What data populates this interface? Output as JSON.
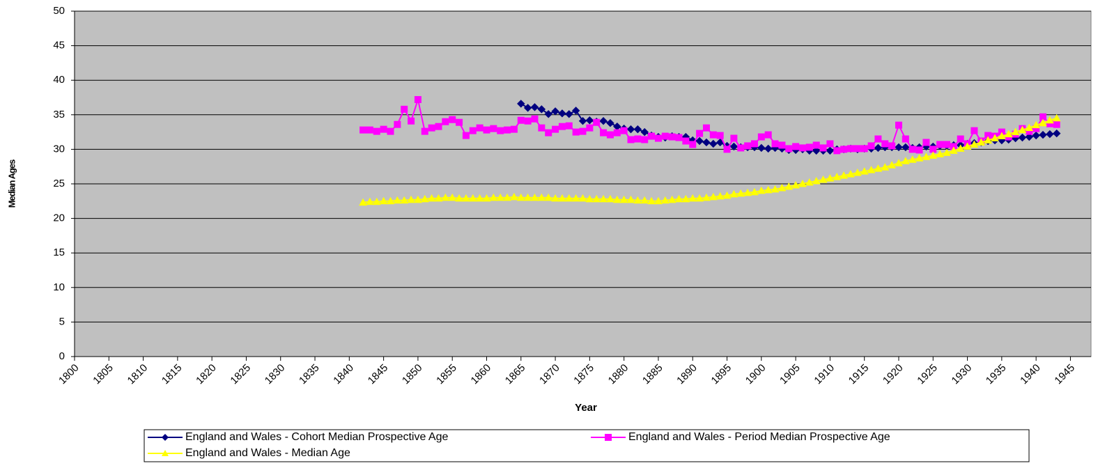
{
  "chart_data": {
    "type": "line",
    "y_label": "Median Ages",
    "x_label": "Year",
    "x": [
      1842,
      1843,
      1844,
      1845,
      1846,
      1847,
      1848,
      1849,
      1850,
      1851,
      1852,
      1853,
      1854,
      1855,
      1856,
      1857,
      1858,
      1859,
      1860,
      1861,
      1862,
      1863,
      1864,
      1865,
      1866,
      1867,
      1868,
      1869,
      1870,
      1871,
      1872,
      1873,
      1874,
      1875,
      1876,
      1877,
      1878,
      1879,
      1880,
      1881,
      1882,
      1883,
      1884,
      1885,
      1886,
      1887,
      1888,
      1889,
      1890,
      1891,
      1892,
      1893,
      1894,
      1895,
      1896,
      1897,
      1898,
      1899,
      1900,
      1901,
      1902,
      1903,
      1904,
      1905,
      1906,
      1907,
      1908,
      1909,
      1910,
      1911,
      1912,
      1913,
      1914,
      1915,
      1916,
      1917,
      1918,
      1919,
      1920,
      1921,
      1922,
      1923,
      1924,
      1925,
      1926,
      1927,
      1928,
      1929,
      1930,
      1931,
      1932,
      1933,
      1934,
      1935,
      1936,
      1937,
      1938,
      1939,
      1940,
      1941,
      1942,
      1943
    ],
    "series": [
      {
        "name": "England and Wales - Cohort Median Prospective Age",
        "color": "#000080",
        "marker": "diamond",
        "values": [
          null,
          null,
          null,
          null,
          null,
          null,
          null,
          null,
          null,
          null,
          null,
          null,
          null,
          null,
          null,
          null,
          null,
          null,
          null,
          null,
          null,
          null,
          null,
          36.6,
          36.0,
          36.1,
          35.8,
          35.1,
          35.5,
          35.2,
          35.1,
          35.6,
          34.1,
          34.2,
          34.0,
          34.1,
          33.8,
          33.3,
          33.0,
          32.9,
          32.9,
          32.5,
          32.0,
          31.8,
          31.7,
          31.9,
          31.8,
          31.8,
          31.3,
          31.2,
          31.0,
          30.8,
          31.0,
          30.5,
          30.4,
          30.3,
          30.3,
          30.3,
          30.2,
          30.1,
          30.2,
          30.1,
          29.9,
          29.9,
          30.0,
          29.8,
          29.8,
          29.8,
          29.8,
          30.0,
          30.0,
          30.1,
          30.0,
          30.1,
          30.1,
          30.2,
          30.3,
          30.3,
          30.3,
          30.3,
          30.2,
          30.3,
          30.4,
          30.4,
          30.5,
          30.5,
          30.6,
          30.6,
          30.8,
          30.9,
          31.0,
          31.2,
          31.3,
          31.3,
          31.4,
          31.6,
          31.7,
          31.8,
          32.0,
          32.1,
          32.2,
          32.3
        ]
      },
      {
        "name": "England and Wales - Period Median Prospective Age",
        "color": "#ff00ff",
        "marker": "square",
        "values": [
          32.8,
          32.8,
          32.6,
          32.9,
          32.6,
          33.6,
          35.8,
          34.1,
          37.2,
          32.6,
          33.1,
          33.3,
          34.0,
          34.3,
          33.9,
          32.0,
          32.7,
          33.1,
          32.8,
          33.0,
          32.7,
          32.8,
          32.9,
          34.2,
          34.1,
          34.4,
          33.1,
          32.4,
          32.9,
          33.3,
          33.4,
          32.5,
          32.6,
          33.1,
          33.9,
          32.4,
          32.1,
          32.4,
          32.7,
          31.4,
          31.5,
          31.4,
          31.9,
          31.6,
          31.9,
          31.8,
          31.7,
          31.2,
          30.7,
          32.3,
          33.1,
          32.1,
          32.0,
          30.0,
          31.6,
          30.2,
          30.5,
          30.8,
          31.8,
          32.1,
          30.8,
          30.6,
          30.1,
          30.4,
          30.2,
          30.3,
          30.6,
          30.2,
          30.8,
          29.8,
          30.0,
          30.1,
          30.1,
          30.1,
          30.5,
          31.5,
          30.8,
          30.5,
          33.5,
          31.5,
          30.0,
          29.9,
          31.0,
          30.0,
          30.7,
          30.7,
          30.4,
          31.5,
          30.8,
          32.7,
          31.2,
          32.0,
          31.9,
          32.5,
          31.8,
          32.2,
          33.0,
          32.6,
          33.0,
          34.7,
          33.7,
          33.6
        ]
      },
      {
        "name": "England and Wales - Median Age",
        "color": "#ffff00",
        "marker": "triangle",
        "values": [
          22.3,
          22.4,
          22.4,
          22.5,
          22.5,
          22.6,
          22.6,
          22.7,
          22.7,
          22.8,
          22.9,
          22.9,
          23.0,
          23.0,
          22.9,
          22.9,
          22.9,
          22.9,
          22.9,
          23.0,
          23.0,
          23.0,
          23.1,
          23.0,
          23.0,
          23.0,
          23.0,
          23.0,
          22.9,
          22.9,
          22.9,
          22.9,
          22.9,
          22.8,
          22.8,
          22.8,
          22.8,
          22.7,
          22.7,
          22.7,
          22.6,
          22.6,
          22.5,
          22.5,
          22.6,
          22.7,
          22.8,
          22.8,
          22.9,
          22.9,
          23.0,
          23.1,
          23.2,
          23.3,
          23.5,
          23.6,
          23.7,
          23.8,
          24.0,
          24.1,
          24.2,
          24.4,
          24.6,
          24.8,
          25.0,
          25.2,
          25.4,
          25.6,
          25.8,
          26.0,
          26.2,
          26.4,
          26.6,
          26.8,
          27.0,
          27.2,
          27.4,
          27.7,
          28.0,
          28.3,
          28.5,
          28.7,
          28.9,
          29.1,
          29.3,
          29.5,
          29.8,
          30.1,
          30.4,
          30.7,
          31.0,
          31.3,
          31.6,
          31.9,
          32.2,
          32.5,
          32.8,
          33.1,
          33.5,
          33.8,
          34.2,
          34.5
        ]
      }
    ],
    "xlim": [
      1800,
      1948
    ],
    "xticks": [
      1800,
      1805,
      1810,
      1815,
      1820,
      1825,
      1830,
      1835,
      1840,
      1845,
      1850,
      1855,
      1860,
      1865,
      1870,
      1875,
      1880,
      1885,
      1890,
      1895,
      1900,
      1905,
      1910,
      1915,
      1920,
      1925,
      1930,
      1935,
      1940,
      1945
    ],
    "ylim": [
      0,
      50
    ],
    "yticks": [
      0,
      5,
      10,
      15,
      20,
      25,
      30,
      35,
      40,
      45,
      50
    ],
    "grid": true,
    "plot_background": "#c0c0c0",
    "legend": "bottom"
  }
}
